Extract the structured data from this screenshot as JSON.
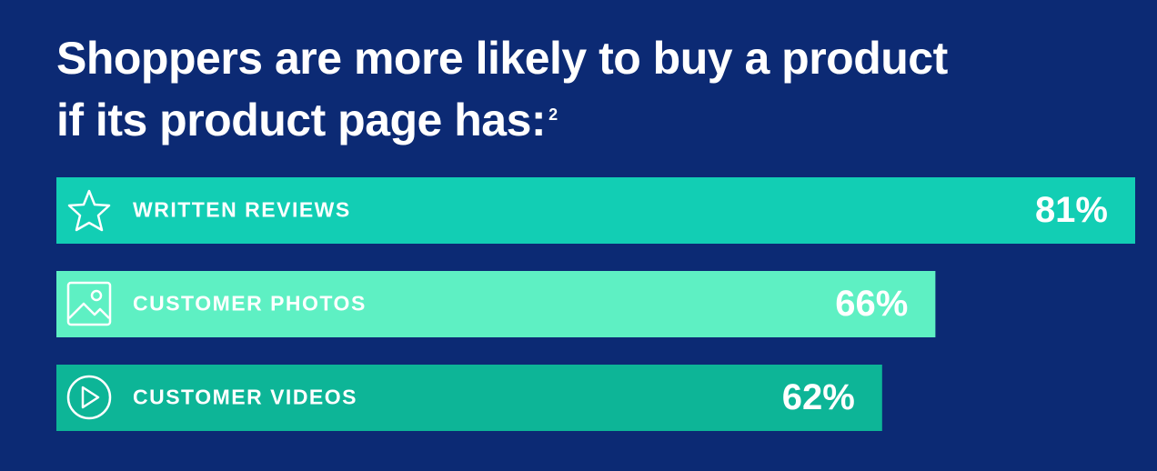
{
  "chart_data": {
    "type": "bar",
    "orientation": "horizontal",
    "title": "Shoppers are more likely to buy a product if its product page has:",
    "title_superscript": "2",
    "categories": [
      "WRITTEN REVIEWS",
      "CUSTOMER PHOTOS",
      "CUSTOMER VIDEOS"
    ],
    "values": [
      81,
      66,
      62
    ],
    "value_labels": [
      "81%",
      "66%",
      "62%"
    ],
    "colors": [
      "#12ceb4",
      "#5ef0c3",
      "#0db597"
    ]
  }
}
